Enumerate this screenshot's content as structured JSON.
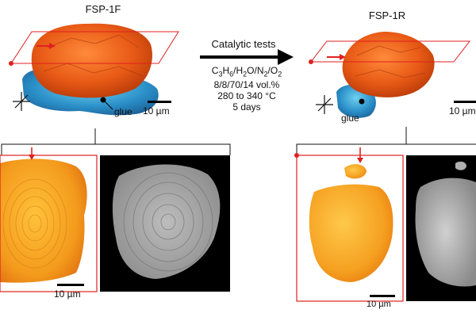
{
  "titles": {
    "left": "FSP-1F",
    "right": "FSP-1R"
  },
  "arrow_label": "Catalytic tests",
  "conditions": {
    "gases": "C3H6/H2O/N2/O2",
    "ratio": "8/8/70/14 vol.%",
    "temperature": "280 to 340 °C",
    "duration": "5 days"
  },
  "labels": {
    "glue_left": "glue",
    "glue_right": "glue"
  },
  "scale_bars": {
    "top_left": "10 µm",
    "top_right": "10 µm",
    "bottom_left": "10 µm",
    "bottom_right": "10 µm"
  },
  "colors": {
    "particle_orange": "#e8621a",
    "glue_blue": "#2a8fc8",
    "outline_red": "#e02020",
    "slice_orange": "#f39a1c"
  }
}
